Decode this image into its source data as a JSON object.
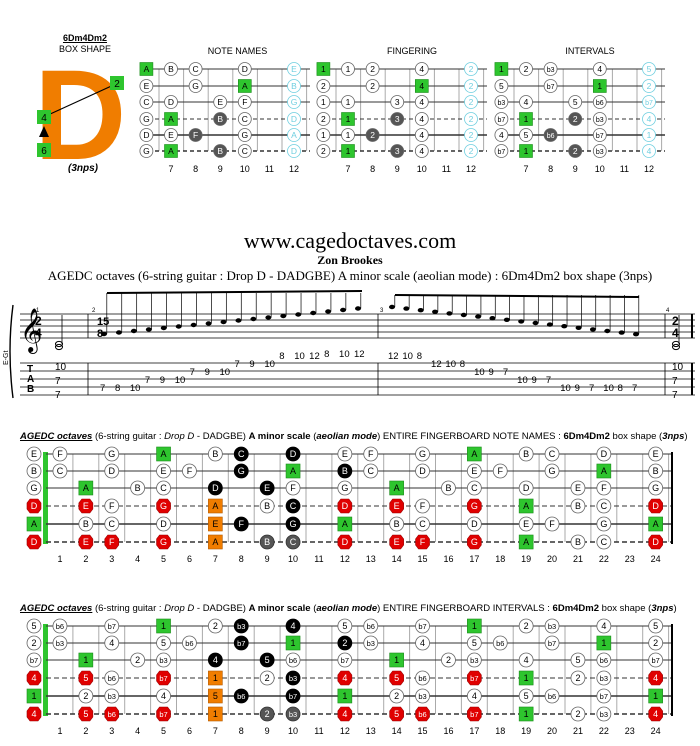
{
  "logo": {
    "name": "6Dm4Dm2",
    "sub": "BOX SHAPE",
    "letter": "D",
    "markers": [
      "2",
      "4",
      "6"
    ],
    "note": "(3nps)"
  },
  "mini": {
    "titles": [
      "NOTE NAMES",
      "FINGERING",
      "INTERVALS"
    ],
    "frets": [
      "7",
      "8",
      "9",
      "10",
      "11",
      "12"
    ]
  },
  "header": {
    "site": "www.cagedoctaves.com",
    "author": "Zon Brookes",
    "subtitle": "AGEDC octaves (6-string guitar : Drop D - DADGBE) A minor scale (aeolian mode) : 6Dm4Dm2 box shape (3nps)"
  },
  "staff": {
    "time_a": [
      "2",
      "4"
    ],
    "time_b": [
      "15",
      "8"
    ],
    "measures": [
      "1",
      "2",
      "3",
      "4"
    ],
    "clef_label": "E-Gt",
    "tab_letters": [
      "T",
      "A",
      "B"
    ]
  },
  "tab_numbers": {
    "m1": [
      "10",
      "7",
      "7"
    ],
    "m2": [
      "7",
      "8",
      "10",
      "7",
      "9",
      "10",
      "7",
      "9",
      "10",
      "7",
      "9",
      "10",
      "8",
      "10",
      "12",
      "8",
      "10",
      "12"
    ],
    "m3": [
      "12",
      "10",
      "8",
      "12",
      "10",
      "8",
      "10",
      "9",
      "7",
      "10",
      "9",
      "7",
      "10",
      "9",
      "7",
      "10",
      "8",
      "7"
    ],
    "m4": [
      "10",
      "7",
      "7"
    ]
  },
  "section1": {
    "t1": "AGEDC octaves",
    "t2": " (6-string guitar : ",
    "t3": "Drop D",
    "t4": " - DADGBE) ",
    "t5": "A minor scale",
    "t6": " (",
    "t7": "aeolian mode",
    "t8": ") ENTIRE FINGERBOARD NOTE NAMES : ",
    "t9": "6Dm4Dm2",
    "t10": " box shape (",
    "t11": "3nps",
    "t12": ")"
  },
  "section2": {
    "t1": "AGEDC octaves",
    "t2": " (6-string guitar : ",
    "t3": "Drop D",
    "t4": " - DADGBE) ",
    "t5": "A minor scale",
    "t6": " (",
    "t7": "aeolian mode",
    "t8": ") ENTIRE FINGERBOARD INTERVALS : ",
    "t9": "6Dm4Dm2",
    "t10": " box shape (",
    "t11": "3nps",
    "t12": ")"
  },
  "fret_numbers": [
    "1",
    "2",
    "3",
    "4",
    "5",
    "6",
    "7",
    "8",
    "9",
    "10",
    "11",
    "12",
    "13",
    "14",
    "15",
    "16",
    "17",
    "18",
    "19",
    "20",
    "21",
    "22",
    "23",
    "24"
  ],
  "colors": {
    "orange": "#f07d00",
    "green": "#2ec52e",
    "red": "#e00000",
    "dark": "#555555",
    "black": "#000000",
    "cyan": "#6fcfe0"
  }
}
